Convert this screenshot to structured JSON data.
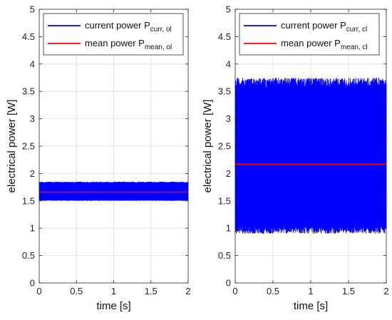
{
  "chart_data": [
    {
      "type": "line",
      "xlabel": "time [s]",
      "ylabel": "electrical power [W]",
      "xlim": [
        0,
        2
      ],
      "ylim": [
        0,
        5
      ],
      "xticks": [
        "0",
        "0.5",
        "1",
        "1.5",
        "2"
      ],
      "yticks": [
        "0",
        "0.5",
        "1",
        "1.5",
        "2",
        "2.5",
        "3",
        "3.5",
        "4",
        "4.5",
        "5"
      ],
      "grid": true,
      "legend_position": "top-left",
      "series": [
        {
          "name": "current power P",
          "subscript": "curr, ol",
          "color": "#0000ff",
          "style": "oscillating-band",
          "band_min": 1.5,
          "band_max": 1.85,
          "band_center": 1.66
        },
        {
          "name": "mean power P",
          "subscript": "mean, ol",
          "color": "#ff0000",
          "style": "constant",
          "value": 1.66
        }
      ]
    },
    {
      "type": "line",
      "xlabel": "time [s]",
      "ylabel": "electrical power [W]",
      "xlim": [
        0,
        2
      ],
      "ylim": [
        0,
        5
      ],
      "xticks": [
        "0",
        "0.5",
        "1",
        "1.5",
        "2"
      ],
      "yticks": [
        "0",
        "0.5",
        "1",
        "1.5",
        "2",
        "2.5",
        "3",
        "3.5",
        "4",
        "4.5",
        "5"
      ],
      "grid": true,
      "legend_position": "top-left",
      "series": [
        {
          "name": "current power P",
          "subscript": "curr, cl",
          "color": "#0000ff",
          "style": "oscillating-band",
          "band_min": 0.9,
          "band_max": 3.75,
          "band_center": 2.17
        },
        {
          "name": "mean power P",
          "subscript": "mean, cl",
          "color": "#ff0000",
          "style": "constant",
          "value": 2.17
        }
      ]
    }
  ]
}
